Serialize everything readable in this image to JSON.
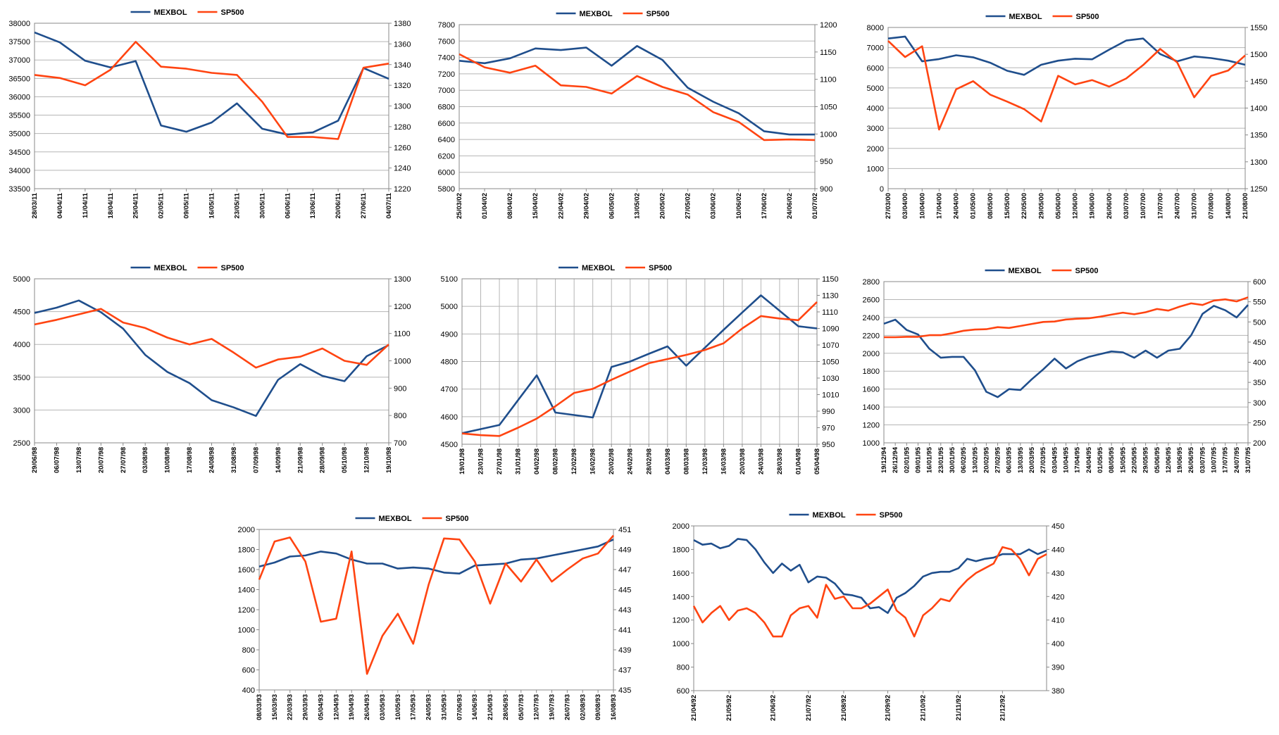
{
  "chart_data": [
    {
      "type": "line",
      "categories": [
        "28/03/11",
        "04/04/11",
        "11/04/11",
        "18/04/11",
        "25/04/11",
        "02/05/11",
        "09/05/11",
        "16/05/11",
        "23/05/11",
        "30/05/11",
        "06/06/11",
        "13/06/11",
        "20/06/11",
        "27/06/11",
        "04/07/11"
      ],
      "series": [
        {
          "name": "MEXBOL",
          "color": "#1f4e8c",
          "values": [
            37750,
            37480,
            36980,
            36800,
            36970,
            35220,
            35050,
            35300,
            35820,
            35130,
            34970,
            35030,
            35350,
            36780,
            36490
          ]
        },
        {
          "name": "SP500",
          "color": "#ff4411",
          "axis": "y2",
          "values": [
            1330,
            1327,
            1320,
            1335,
            1362,
            1338,
            1336,
            1332,
            1330,
            1304,
            1270,
            1270,
            1268,
            1337,
            1341
          ]
        }
      ],
      "ylim": [
        33500,
        38000
      ],
      "yticks": [
        33500,
        34000,
        34500,
        35000,
        35500,
        36000,
        36500,
        37000,
        37500,
        38000
      ],
      "y2lim": [
        1220,
        1380
      ],
      "y2ticks": [
        1220,
        1240,
        1260,
        1280,
        1300,
        1320,
        1340,
        1360,
        1380
      ],
      "grid": true,
      "xgrid": false,
      "legend": "top"
    },
    {
      "type": "line",
      "categories": [
        "25/03/02",
        "01/04/02",
        "08/04/02",
        "15/04/02",
        "22/04/02",
        "29/04/02",
        "06/05/02",
        "13/05/02",
        "20/05/02",
        "27/05/02",
        "03/06/02",
        "10/06/02",
        "17/06/02",
        "24/06/02",
        "01/07/02"
      ],
      "series": [
        {
          "name": "MEXBOL",
          "color": "#1f4e8c",
          "values": [
            7360,
            7330,
            7390,
            7510,
            7490,
            7520,
            7300,
            7540,
            7370,
            7030,
            6860,
            6720,
            6500,
            6460,
            6460
          ]
        },
        {
          "name": "SP500",
          "color": "#ff4411",
          "axis": "y2",
          "values": [
            1146,
            1122,
            1112,
            1125,
            1089,
            1086,
            1074,
            1106,
            1086,
            1072,
            1040,
            1022,
            989,
            990,
            989
          ]
        }
      ],
      "ylim": [
        5800,
        7800
      ],
      "yticks": [
        5800,
        6000,
        6200,
        6400,
        6600,
        6800,
        7000,
        7200,
        7400,
        7600,
        7800
      ],
      "y2lim": [
        900,
        1200
      ],
      "y2ticks": [
        900,
        950,
        1000,
        1050,
        1100,
        1150,
        1200
      ],
      "grid": true,
      "xgrid": false,
      "legend": "top"
    },
    {
      "type": "line",
      "categories": [
        "27/03/00",
        "03/04/00",
        "10/04/00",
        "17/04/00",
        "24/04/00",
        "01/05/00",
        "08/05/00",
        "15/05/00",
        "22/05/00",
        "29/05/00",
        "05/06/00",
        "12/06/00",
        "19/06/00",
        "26/06/00",
        "03/07/00",
        "10/07/00",
        "17/07/00",
        "24/07/00",
        "31/07/00",
        "07/08/00",
        "14/08/00",
        "21/08/00"
      ],
      "series": [
        {
          "name": "MEXBOL",
          "color": "#1f4e8c",
          "values": [
            7450,
            7550,
            6320,
            6430,
            6620,
            6520,
            6250,
            5850,
            5650,
            6150,
            6350,
            6450,
            6420,
            6900,
            7350,
            7450,
            6680,
            6320,
            6560,
            6480,
            6350,
            6150
          ]
        },
        {
          "name": "SP500",
          "color": "#ff4411",
          "axis": "y2",
          "values": [
            1525,
            1495,
            1515,
            1360,
            1435,
            1450,
            1425,
            1412,
            1398,
            1375,
            1460,
            1444,
            1452,
            1440,
            1455,
            1480,
            1510,
            1485,
            1420,
            1460,
            1470,
            1498
          ]
        }
      ],
      "ylim": [
        0,
        8000
      ],
      "yticks": [
        0,
        1000,
        2000,
        3000,
        4000,
        5000,
        6000,
        7000,
        8000
      ],
      "y2lim": [
        1250,
        1550
      ],
      "y2ticks": [
        1250,
        1300,
        1350,
        1400,
        1450,
        1500,
        1550
      ],
      "grid": true,
      "xgrid": false,
      "legend": "top"
    },
    {
      "type": "line",
      "categories": [
        "29/06/98",
        "06/07/98",
        "13/07/98",
        "20/07/98",
        "27/07/98",
        "03/08/98",
        "10/08/98",
        "17/08/98",
        "24/08/98",
        "31/08/98",
        "07/09/98",
        "14/09/98",
        "21/09/98",
        "28/09/98",
        "05/10/98",
        "12/10/98",
        "19/10/98"
      ],
      "series": [
        {
          "name": "MEXBOL",
          "color": "#1f4e8c",
          "values": [
            4480,
            4560,
            4670,
            4490,
            4240,
            3840,
            3580,
            3410,
            3150,
            3040,
            2910,
            3460,
            3700,
            3520,
            3440,
            3820,
            3990
          ]
        },
        {
          "name": "SP500",
          "color": "#ff4411",
          "axis": "y2",
          "values": [
            1133,
            1150,
            1170,
            1190,
            1140,
            1120,
            1085,
            1060,
            1080,
            1030,
            975,
            1005,
            1015,
            1045,
            1000,
            985,
            1060
          ]
        }
      ],
      "ylim": [
        2500,
        5000
      ],
      "yticks": [
        2500,
        3000,
        3500,
        4000,
        4500,
        5000
      ],
      "y2lim": [
        700,
        1300
      ],
      "y2ticks": [
        700,
        800,
        900,
        1000,
        1100,
        1200,
        1300
      ],
      "grid": true,
      "xgrid": false,
      "legend": "top"
    },
    {
      "type": "line",
      "categories": [
        "19/01/98",
        "23/01/98",
        "27/01/98",
        "31/01/98",
        "04/02/98",
        "08/02/98",
        "12/02/98",
        "16/02/98",
        "20/02/98",
        "24/02/98",
        "28/02/98",
        "04/03/98",
        "08/03/98",
        "12/03/98",
        "16/03/98",
        "20/03/98",
        "24/03/98",
        "28/03/98",
        "01/04/98",
        "05/04/98"
      ],
      "series": [
        {
          "name": "MEXBOL",
          "color": "#1f4e8c",
          "values": [
            4540,
            4555,
            4570,
            4660,
            4750,
            4615,
            4606,
            4597,
            4780,
            4800,
            4828,
            4855,
            4785,
            4850,
            4915,
            4978,
            5040,
            4984,
            4928,
            4920
          ]
        },
        {
          "name": "SP500",
          "color": "#ff4411",
          "axis": "y2",
          "values": [
            963,
            961,
            960,
            970,
            981,
            996,
            1012,
            1017,
            1028,
            1038,
            1048,
            1053,
            1058,
            1064,
            1072,
            1090,
            1105,
            1102,
            1100,
            1122
          ]
        }
      ],
      "ylim": [
        4500,
        5100
      ],
      "yticks": [
        4500,
        4600,
        4700,
        4800,
        4900,
        5000,
        5100
      ],
      "y2lim": [
        950,
        1150
      ],
      "y2ticks": [
        950,
        970,
        990,
        1010,
        1030,
        1050,
        1070,
        1090,
        1110,
        1130,
        1150
      ],
      "grid": true,
      "xgrid": true,
      "legend": "top"
    },
    {
      "type": "line",
      "categories": [
        "19/12/94",
        "26/12/94",
        "02/01/95",
        "09/01/95",
        "16/01/95",
        "23/01/95",
        "30/01/95",
        "06/02/95",
        "13/02/95",
        "20/02/95",
        "27/02/95",
        "06/03/95",
        "13/03/95",
        "20/03/95",
        "27/03/95",
        "03/04/95",
        "10/04/95",
        "17/04/95",
        "24/04/95",
        "01/05/95",
        "08/05/95",
        "15/05/95",
        "22/05/95",
        "29/05/95",
        "05/06/95",
        "12/06/95",
        "19/06/95",
        "26/06/95",
        "03/07/95",
        "10/07/95",
        "17/07/95",
        "24/07/95",
        "31/07/95"
      ],
      "series": [
        {
          "name": "MEXBOL",
          "color": "#1f4e8c",
          "values": [
            2330,
            2375,
            2260,
            2210,
            2050,
            1950,
            1960,
            1960,
            1810,
            1570,
            1510,
            1600,
            1590,
            1710,
            1820,
            1940,
            1830,
            1910,
            1960,
            1990,
            2020,
            2010,
            1950,
            2030,
            1950,
            2030,
            2050,
            2200,
            2440,
            2530,
            2480,
            2400,
            2540
          ]
        },
        {
          "name": "SP500",
          "color": "#ff4411",
          "axis": "y2",
          "values": [
            462,
            462,
            463,
            463,
            467,
            467,
            472,
            478,
            481,
            482,
            487,
            485,
            490,
            495,
            500,
            501,
            506,
            508,
            509,
            513,
            518,
            523,
            519,
            524,
            532,
            528,
            538,
            546,
            542,
            553,
            556,
            551,
            561
          ]
        }
      ],
      "ylim": [
        1000,
        2800
      ],
      "yticks": [
        1000,
        1200,
        1400,
        1600,
        1800,
        2000,
        2200,
        2400,
        2600,
        2800
      ],
      "y2lim": [
        200,
        600
      ],
      "y2ticks": [
        200,
        250,
        300,
        350,
        400,
        450,
        500,
        550,
        600
      ],
      "grid": true,
      "xgrid": false,
      "legend": "top"
    },
    {
      "type": "line",
      "categories": [
        "08/03/93",
        "15/03/93",
        "22/03/93",
        "29/03/93",
        "05/04/93",
        "12/04/93",
        "19/04/93",
        "26/04/93",
        "03/05/93",
        "10/05/93",
        "17/05/93",
        "24/05/93",
        "31/05/93",
        "07/06/93",
        "14/06/93",
        "21/06/93",
        "28/06/93",
        "05/07/93",
        "12/07/93",
        "19/07/93",
        "26/07/93",
        "02/08/93",
        "09/08/93",
        "16/08/93"
      ],
      "series": [
        {
          "name": "MEXBOL",
          "color": "#1f4e8c",
          "values": [
            1630,
            1670,
            1730,
            1740,
            1780,
            1760,
            1700,
            1660,
            1660,
            1610,
            1620,
            1610,
            1570,
            1560,
            1640,
            1650,
            1660,
            1700,
            1710,
            1740,
            1770,
            1800,
            1830,
            1900
          ]
        },
        {
          "name": "SP500",
          "color": "#ff4411",
          "axis": "y2",
          "values": [
            446,
            449.8,
            450.2,
            447.8,
            441.8,
            442.1,
            448.8,
            436.6,
            440.4,
            442.6,
            439.6,
            445.5,
            450.1,
            450,
            447.8,
            443.6,
            447.6,
            445.8,
            448,
            445.8,
            447,
            448.1,
            448.6,
            450.4
          ]
        }
      ],
      "ylim": [
        400,
        2000
      ],
      "yticks": [
        400,
        600,
        800,
        1000,
        1200,
        1400,
        1600,
        1800,
        2000
      ],
      "y2lim": [
        435,
        451
      ],
      "y2ticks": [
        435,
        437,
        439,
        441,
        443,
        445,
        447,
        449,
        451
      ],
      "grid": false,
      "xgrid": false,
      "legend": "top"
    },
    {
      "type": "line",
      "categories": [
        "21/04/92",
        null,
        null,
        null,
        "21/05/92",
        null,
        null,
        null,
        null,
        "21/06/92",
        null,
        null,
        null,
        "21/07/92",
        null,
        null,
        null,
        "21/08/92",
        null,
        null,
        null,
        null,
        "21/09/92",
        null,
        null,
        null,
        "21/10/92",
        null,
        null,
        null,
        "21/11/92",
        null,
        null,
        null,
        null,
        "21/12/92",
        null,
        null,
        null,
        null,
        null
      ],
      "series": [
        {
          "name": "MEXBOL",
          "color": "#1f4e8c",
          "values": [
            1880,
            1840,
            1850,
            1810,
            1830,
            1890,
            1880,
            1800,
            1690,
            1600,
            1680,
            1620,
            1670,
            1520,
            1570,
            1560,
            1510,
            1420,
            1410,
            1390,
            1300,
            1310,
            1260,
            1390,
            1430,
            1490,
            1570,
            1600,
            1610,
            1610,
            1640,
            1720,
            1700,
            1720,
            1730,
            1760,
            1760,
            1760,
            1800,
            1760,
            1790
          ]
        },
        {
          "name": "SP500",
          "color": "#ff4411",
          "axis": "y2",
          "values": [
            416,
            409,
            413,
            416,
            410,
            414,
            415,
            413,
            409,
            403,
            403,
            412,
            415,
            416,
            411,
            425,
            419,
            420,
            415,
            415,
            417,
            420,
            423,
            414,
            411,
            403,
            412,
            415,
            419,
            418,
            423,
            427,
            430,
            432,
            434,
            441,
            440,
            436,
            429,
            436,
            438
          ]
        }
      ],
      "ylim": [
        600,
        2000
      ],
      "yticks": [
        600,
        800,
        1000,
        1200,
        1400,
        1600,
        1800,
        2000
      ],
      "y2lim": [
        380,
        450
      ],
      "y2ticks": [
        380,
        390,
        400,
        410,
        420,
        430,
        440,
        450
      ],
      "grid": false,
      "xgrid": false,
      "legend": "top"
    }
  ]
}
